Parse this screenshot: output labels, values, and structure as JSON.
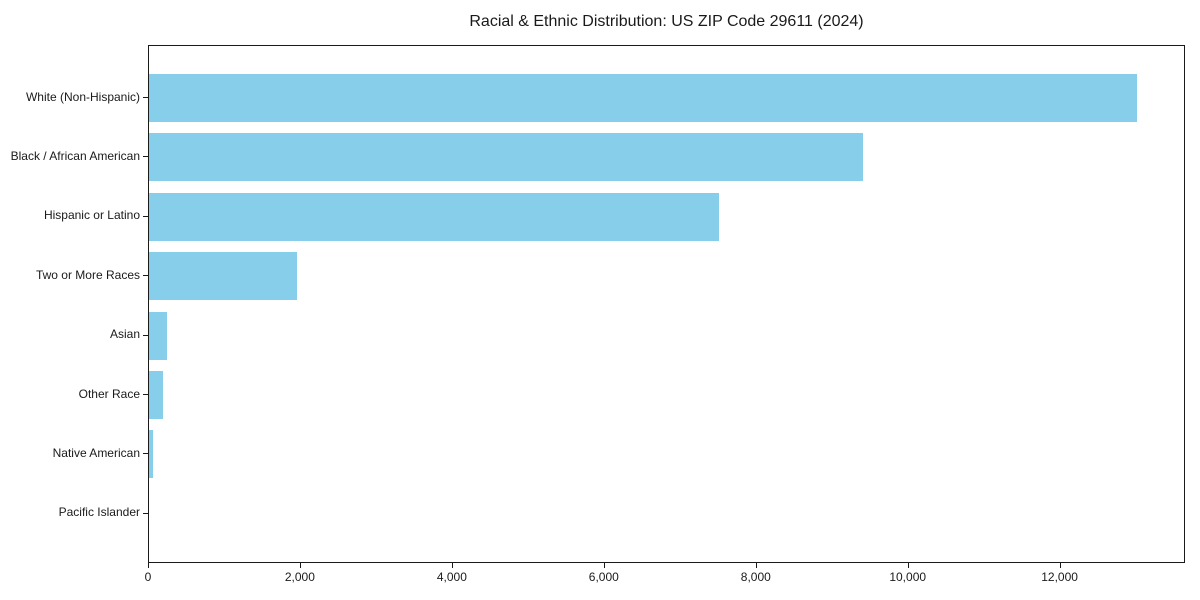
{
  "chart_data": {
    "type": "bar",
    "orientation": "horizontal",
    "title": "Racial & Ethnic Distribution: US ZIP Code 29611 (2024)",
    "categories": [
      "White (Non-Hispanic)",
      "Black / African American",
      "Hispanic or Latino",
      "Two or More Races",
      "Asian",
      "Other Race",
      "Native American",
      "Pacific Islander"
    ],
    "values": [
      13000,
      9400,
      7500,
      1950,
      230,
      180,
      50,
      0
    ],
    "bar_color": "#87CEEB",
    "xlabel": "",
    "ylabel": "",
    "xlim": [
      0,
      13650
    ],
    "xticks": [
      0,
      2000,
      4000,
      6000,
      8000,
      10000,
      12000
    ],
    "xtick_labels": [
      "0",
      "2,000",
      "4,000",
      "6,000",
      "8,000",
      "10,000",
      "12,000"
    ],
    "grid": false,
    "legend_position": "none",
    "background_color": "#ffffff",
    "text_color": "#1a1a1a"
  }
}
